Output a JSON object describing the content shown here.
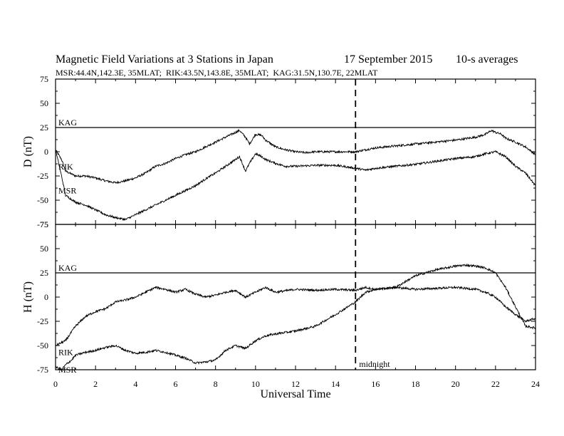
{
  "chart_data": {
    "type": "line",
    "title": "Magnetic Field Variations at 3 Stations in Japan",
    "date": "17 September 2015",
    "averaging": "10-s averages",
    "subtitle": "MSR:44.4N,142.3E, 35MLAT;  RIK:43.5N,143.8E, 35MLAT;  KAG:31.5N,130.7E, 22MLAT",
    "xlabel": "Universal Time",
    "xlim": [
      0,
      24
    ],
    "xticks": [
      "0",
      "2",
      "4",
      "6",
      "8",
      "10",
      "12",
      "14",
      "16",
      "18",
      "20",
      "22",
      "24"
    ],
    "annotation": {
      "x": 15,
      "label": "midnight",
      "style": "dashed"
    },
    "panels": [
      {
        "ylabel": "D (nT)",
        "ylim": [
          -75,
          75
        ],
        "yticks": [
          "75",
          "50",
          "25",
          "0",
          "-25",
          "-50",
          "-75"
        ],
        "series": [
          {
            "name": "KAG",
            "x": [
              0,
              24
            ],
            "y": [
              25,
              25
            ]
          },
          {
            "name": "RIK",
            "x": [
              0,
              0.3,
              0.5,
              1,
              1.5,
              2,
              2.5,
              3,
              3.5,
              4,
              4.5,
              5,
              5.5,
              6,
              6.5,
              7,
              7.5,
              8,
              8.5,
              9,
              9.2,
              9.5,
              9.7,
              10,
              10.3,
              10.5,
              11,
              11.5,
              12,
              12.5,
              13,
              14,
              15,
              15.5,
              16,
              17,
              18,
              19,
              20,
              21,
              21.5,
              21.8,
              22,
              22.3,
              22.5,
              23,
              23.5,
              24
            ],
            "y": [
              2,
              -8,
              -20,
              -25,
              -25,
              -27,
              -30,
              -32,
              -30,
              -27,
              -22,
              -15,
              -12,
              -7,
              -3,
              0,
              5,
              10,
              15,
              20,
              22,
              15,
              8,
              18,
              17,
              12,
              5,
              2,
              0,
              -1,
              0,
              0,
              0,
              2,
              4,
              6,
              8,
              10,
              12,
              15,
              18,
              22,
              20,
              18,
              14,
              10,
              5,
              -3
            ]
          },
          {
            "name": "MSR",
            "x": [
              0,
              0.3,
              0.5,
              1,
              1.5,
              2,
              2.5,
              3,
              3.5,
              4,
              4.5,
              5,
              5.5,
              6,
              6.5,
              7,
              7.5,
              8,
              8.5,
              9,
              9.2,
              9.5,
              9.7,
              10,
              10.3,
              10.5,
              11,
              11.5,
              12,
              13,
              14,
              15,
              15.5,
              16,
              17,
              18,
              19,
              20,
              21,
              21.5,
              22,
              22.5,
              23,
              23.5,
              24
            ],
            "y": [
              2,
              -25,
              -45,
              -52,
              -55,
              -60,
              -65,
              -68,
              -70,
              -65,
              -60,
              -55,
              -50,
              -45,
              -40,
              -35,
              -28,
              -22,
              -15,
              -8,
              -5,
              -20,
              -12,
              -2,
              -5,
              -8,
              -12,
              -15,
              -15,
              -14,
              -14,
              -17,
              -19,
              -17,
              -15,
              -13,
              -10,
              -7,
              -5,
              -2,
              0,
              -5,
              -15,
              -22,
              -35
            ]
          }
        ]
      },
      {
        "ylabel": "H (nT)",
        "ylim": [
          -75,
          75
        ],
        "yticks": [
          "75",
          "50",
          "25",
          "0",
          "-25",
          "-50",
          "-75"
        ],
        "series": [
          {
            "name": "KAG",
            "x": [
              0,
              24
            ],
            "y": [
              25,
              25
            ]
          },
          {
            "name": "RIK",
            "x": [
              0,
              0.5,
              1,
              1.5,
              2,
              2.5,
              3,
              3.5,
              4,
              4.5,
              5,
              5.5,
              6,
              6.5,
              7,
              7.5,
              8,
              8.5,
              9,
              9.5,
              10,
              10.5,
              11,
              12,
              13,
              14,
              15,
              15.5,
              16,
              17,
              18,
              19,
              20,
              21,
              21.5,
              22,
              22.5,
              23,
              23.5,
              24
            ],
            "y": [
              -50,
              -45,
              -30,
              -20,
              -15,
              -12,
              -5,
              -3,
              0,
              5,
              10,
              8,
              5,
              8,
              3,
              0,
              2,
              5,
              7,
              0,
              5,
              10,
              5,
              8,
              7,
              8,
              7,
              10,
              8,
              10,
              8,
              9,
              10,
              8,
              5,
              0,
              -10,
              -18,
              -25,
              -22
            ]
          },
          {
            "name": "MSR",
            "x": [
              0,
              0.3,
              0.5,
              0.8,
              1,
              1.5,
              2,
              2.5,
              3,
              3.5,
              4,
              4.5,
              5,
              5.5,
              6,
              6.5,
              7,
              7.5,
              8,
              8.5,
              9,
              9.5,
              10,
              10.5,
              11,
              12,
              13,
              14,
              15,
              15.5,
              16,
              17,
              18,
              19,
              20,
              20.5,
              21,
              21.5,
              22,
              22.5,
              23,
              23.5,
              24
            ],
            "y": [
              -72,
              -75,
              -70,
              -65,
              -60,
              -57,
              -55,
              -52,
              -50,
              -55,
              -58,
              -57,
              -55,
              -57,
              -60,
              -63,
              -68,
              -67,
              -65,
              -55,
              -50,
              -53,
              -45,
              -40,
              -38,
              -35,
              -30,
              -18,
              -5,
              5,
              8,
              10,
              22,
              28,
              32,
              33,
              32,
              30,
              25,
              10,
              -10,
              -30,
              -32
            ]
          }
        ]
      }
    ],
    "label_positions": {
      "KAG": "left above line",
      "RIK": "left",
      "MSR": "left"
    }
  }
}
